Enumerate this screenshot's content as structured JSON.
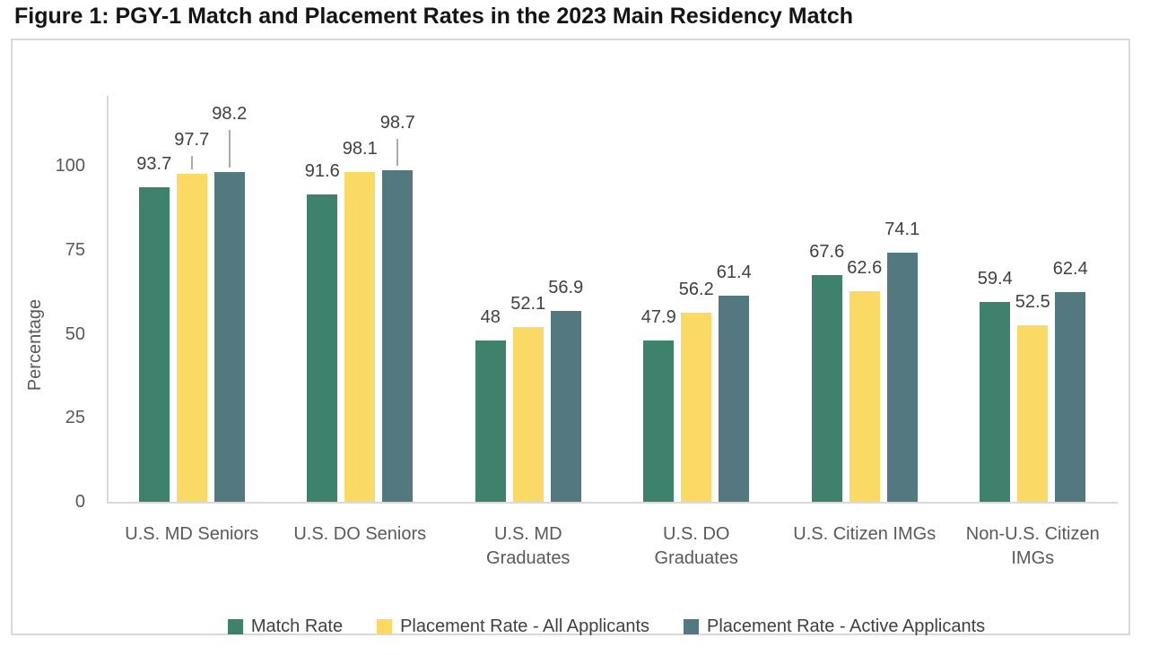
{
  "figure": {
    "title": "Figure 1: PGY-1 Match and Placement Rates in the 2023 Main Residency Match"
  },
  "chart_data": {
    "type": "bar",
    "title": "Figure 1: PGY-1 Match and Placement Rates in the 2023 Main Residency Match",
    "xlabel": "",
    "ylabel": "Percentage",
    "yticks": [
      0,
      25,
      50,
      75,
      100
    ],
    "ylim": [
      0,
      120
    ],
    "grid": false,
    "legend_position": "bottom",
    "data_labels": true,
    "categories": [
      "U.S. MD Seniors",
      "U.S. DO Seniors",
      "U.S. MD\nGraduates",
      "U.S. DO\nGraduates",
      "U.S. Citizen IMGs",
      "Non-U.S. Citizen\nIMGs"
    ],
    "series": [
      {
        "name": "Match Rate",
        "color": "#3E816C",
        "values": [
          93.7,
          91.6,
          48,
          47.9,
          67.6,
          59.4
        ]
      },
      {
        "name": "Placement Rate - All Applicants",
        "color": "#FAD964",
        "values": [
          97.7,
          98.1,
          52.1,
          56.2,
          62.6,
          52.5
        ]
      },
      {
        "name": "Placement Rate - Active Applicants",
        "color": "#53787F",
        "values": [
          98.2,
          98.7,
          56.9,
          61.4,
          74.1,
          62.4
        ]
      }
    ],
    "label_callouts": [
      {
        "series": 1,
        "category": 0,
        "raise": 28,
        "leader": true
      },
      {
        "series": 2,
        "category": 0,
        "raise": 55,
        "leader": true
      },
      {
        "series": 2,
        "category": 1,
        "raise": 43,
        "leader": true
      }
    ]
  }
}
